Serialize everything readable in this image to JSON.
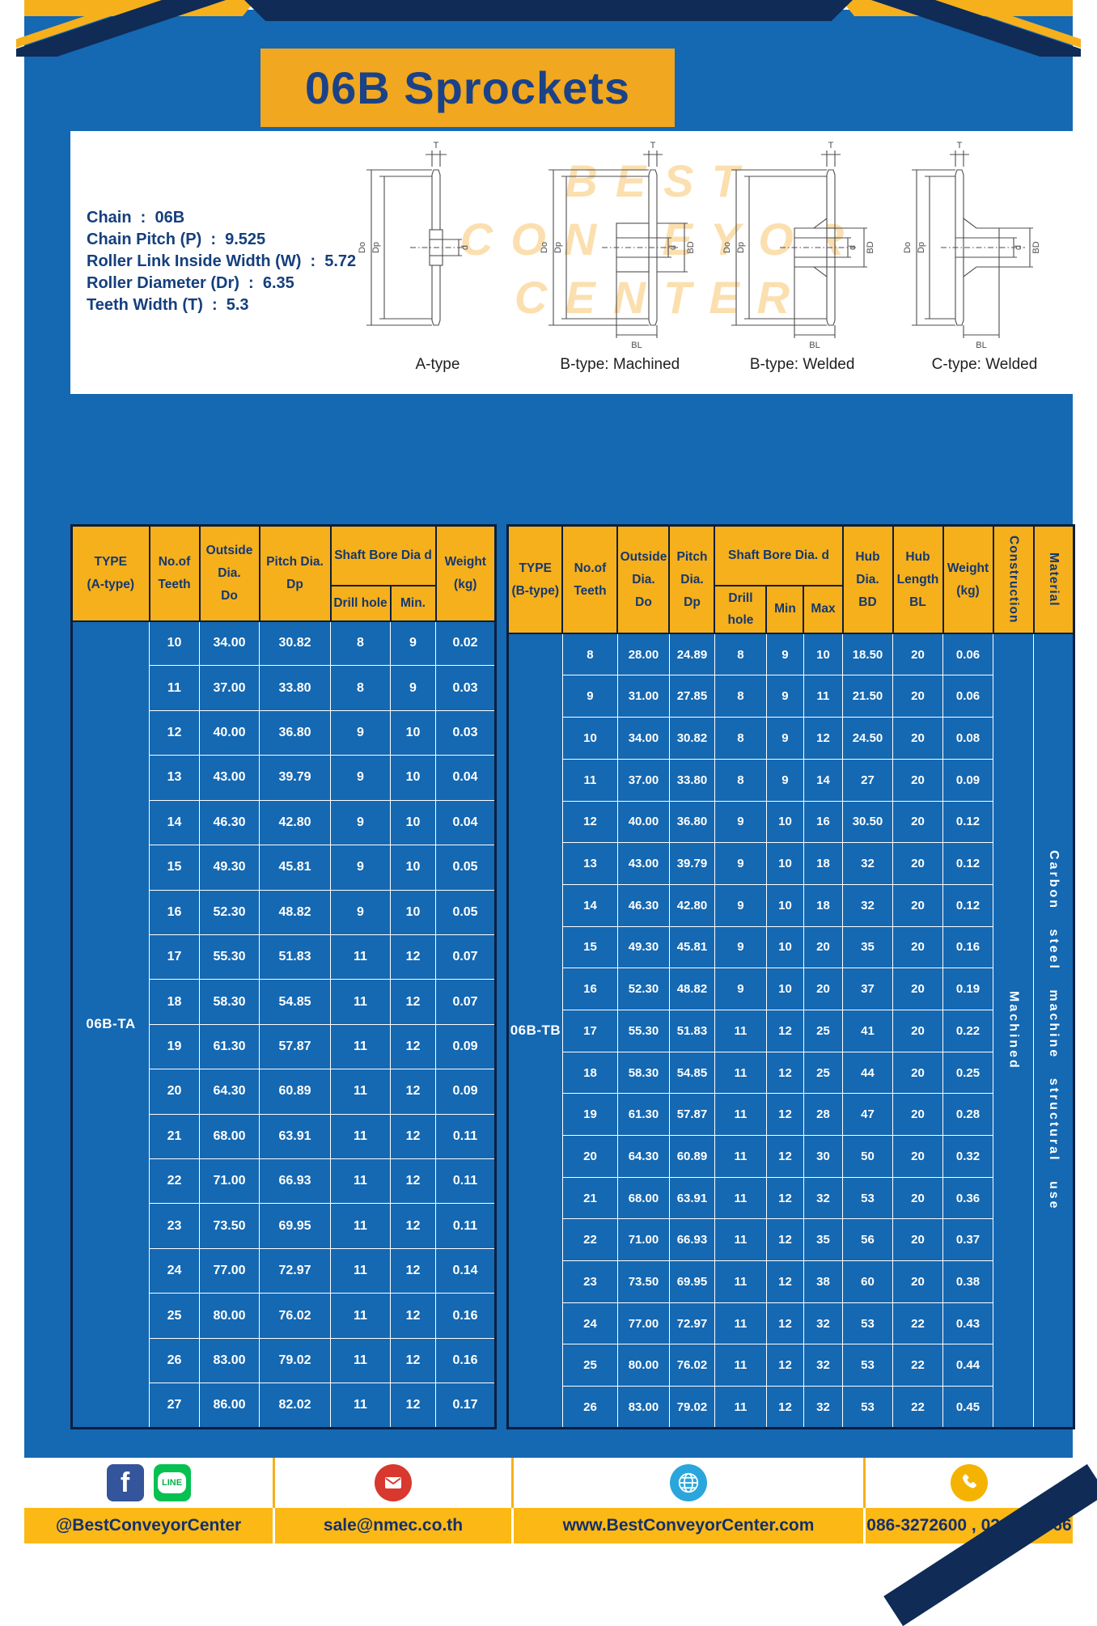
{
  "page": {
    "title": "06B Sprockets"
  },
  "specs": {
    "lines": [
      "Chain  :  06B",
      "Chain Pitch (P)  :  9.525",
      "Roller Link Inside Width (W)  :  5.72",
      "Roller Diameter (Dr)  :  6.35",
      "Teeth Width (T)  :  5.3"
    ]
  },
  "panel": {
    "watermark": "BEST\nCONVEYOR\nCENTER"
  },
  "dims": {
    "T": "T",
    "Do": "Do",
    "Dp": "Dp",
    "d": "d",
    "BD": "BD",
    "BL": "BL"
  },
  "diagrams": {
    "labels": [
      "A-type",
      "B-type: Machined",
      "B-type: Welded",
      "C-type: Welded"
    ]
  },
  "table_a": {
    "headers": {
      "type": "TYPE\n(A-type)",
      "teeth": "No.of\nTeeth",
      "outside": "Outside\nDia.\nDo",
      "pitch": "Pitch Dia.\nDp",
      "shaft_group": "Shaft Bore Dia d",
      "drill": "Drill hole",
      "min": "Min.",
      "weight": "Weight\n(kg)"
    },
    "type_value": "06B-TA",
    "rows": [
      [
        "10",
        "34.00",
        "30.82",
        "8",
        "9",
        "0.02"
      ],
      [
        "11",
        "37.00",
        "33.80",
        "8",
        "9",
        "0.03"
      ],
      [
        "12",
        "40.00",
        "36.80",
        "9",
        "10",
        "0.03"
      ],
      [
        "13",
        "43.00",
        "39.79",
        "9",
        "10",
        "0.04"
      ],
      [
        "14",
        "46.30",
        "42.80",
        "9",
        "10",
        "0.04"
      ],
      [
        "15",
        "49.30",
        "45.81",
        "9",
        "10",
        "0.05"
      ],
      [
        "16",
        "52.30",
        "48.82",
        "9",
        "10",
        "0.05"
      ],
      [
        "17",
        "55.30",
        "51.83",
        "11",
        "12",
        "0.07"
      ],
      [
        "18",
        "58.30",
        "54.85",
        "11",
        "12",
        "0.07"
      ],
      [
        "19",
        "61.30",
        "57.87",
        "11",
        "12",
        "0.09"
      ],
      [
        "20",
        "64.30",
        "60.89",
        "11",
        "12",
        "0.09"
      ],
      [
        "21",
        "68.00",
        "63.91",
        "11",
        "12",
        "0.11"
      ],
      [
        "22",
        "71.00",
        "66.93",
        "11",
        "12",
        "0.11"
      ],
      [
        "23",
        "73.50",
        "69.95",
        "11",
        "12",
        "0.11"
      ],
      [
        "24",
        "77.00",
        "72.97",
        "11",
        "12",
        "0.14"
      ],
      [
        "25",
        "80.00",
        "76.02",
        "11",
        "12",
        "0.16"
      ],
      [
        "26",
        "83.00",
        "79.02",
        "11",
        "12",
        "0.16"
      ],
      [
        "27",
        "86.00",
        "82.02",
        "11",
        "12",
        "0.17"
      ]
    ]
  },
  "table_b": {
    "headers": {
      "type": "TYPE\n(B-type)",
      "teeth": "No.of\nTeeth",
      "outside": "Outside\nDia.\nDo",
      "pitch": "Pitch\nDia.\nDp",
      "shaft_group": "Shaft Bore Dia.  d",
      "drill": "Drill hole",
      "min": "Min",
      "max": "Max",
      "hub_dia": "Hub\nDia.\nBD",
      "hub_len": "Hub\nLength\nBL",
      "weight": "Weight\n(kg)",
      "construction": "Construction",
      "material": "Material"
    },
    "type_value": "06B-TB",
    "construction_value": "Machined",
    "material_value": "Carbon steel machine structural use",
    "rows": [
      [
        "8",
        "28.00",
        "24.89",
        "8",
        "9",
        "10",
        "18.50",
        "20",
        "0.06"
      ],
      [
        "9",
        "31.00",
        "27.85",
        "8",
        "9",
        "11",
        "21.50",
        "20",
        "0.06"
      ],
      [
        "10",
        "34.00",
        "30.82",
        "8",
        "9",
        "12",
        "24.50",
        "20",
        "0.08"
      ],
      [
        "11",
        "37.00",
        "33.80",
        "8",
        "9",
        "14",
        "27",
        "20",
        "0.09"
      ],
      [
        "12",
        "40.00",
        "36.80",
        "9",
        "10",
        "16",
        "30.50",
        "20",
        "0.12"
      ],
      [
        "13",
        "43.00",
        "39.79",
        "9",
        "10",
        "18",
        "32",
        "20",
        "0.12"
      ],
      [
        "14",
        "46.30",
        "42.80",
        "9",
        "10",
        "18",
        "32",
        "20",
        "0.12"
      ],
      [
        "15",
        "49.30",
        "45.81",
        "9",
        "10",
        "20",
        "35",
        "20",
        "0.16"
      ],
      [
        "16",
        "52.30",
        "48.82",
        "9",
        "10",
        "20",
        "37",
        "20",
        "0.19"
      ],
      [
        "17",
        "55.30",
        "51.83",
        "11",
        "12",
        "25",
        "41",
        "20",
        "0.22"
      ],
      [
        "18",
        "58.30",
        "54.85",
        "11",
        "12",
        "25",
        "44",
        "20",
        "0.25"
      ],
      [
        "19",
        "61.30",
        "57.87",
        "11",
        "12",
        "28",
        "47",
        "20",
        "0.28"
      ],
      [
        "20",
        "64.30",
        "60.89",
        "11",
        "12",
        "30",
        "50",
        "20",
        "0.32"
      ],
      [
        "21",
        "68.00",
        "63.91",
        "11",
        "12",
        "32",
        "53",
        "20",
        "0.36"
      ],
      [
        "22",
        "71.00",
        "66.93",
        "11",
        "12",
        "35",
        "56",
        "20",
        "0.37"
      ],
      [
        "23",
        "73.50",
        "69.95",
        "11",
        "12",
        "38",
        "60",
        "20",
        "0.38"
      ],
      [
        "24",
        "77.00",
        "72.97",
        "11",
        "12",
        "32",
        "53",
        "22",
        "0.43"
      ],
      [
        "25",
        "80.00",
        "76.02",
        "11",
        "12",
        "32",
        "53",
        "22",
        "0.44"
      ],
      [
        "26",
        "83.00",
        "79.02",
        "11",
        "12",
        "32",
        "53",
        "22",
        "0.45"
      ]
    ]
  },
  "footer": {
    "line_badge": "LINE",
    "facebook_letter": "f",
    "items": [
      {
        "label": "@BestConveyorCenter"
      },
      {
        "label": "sale@nmec.co.th"
      },
      {
        "label": "www.BestConveyorCenter.com"
      },
      {
        "label": "086-3272600 , 02-0017766"
      }
    ]
  }
}
